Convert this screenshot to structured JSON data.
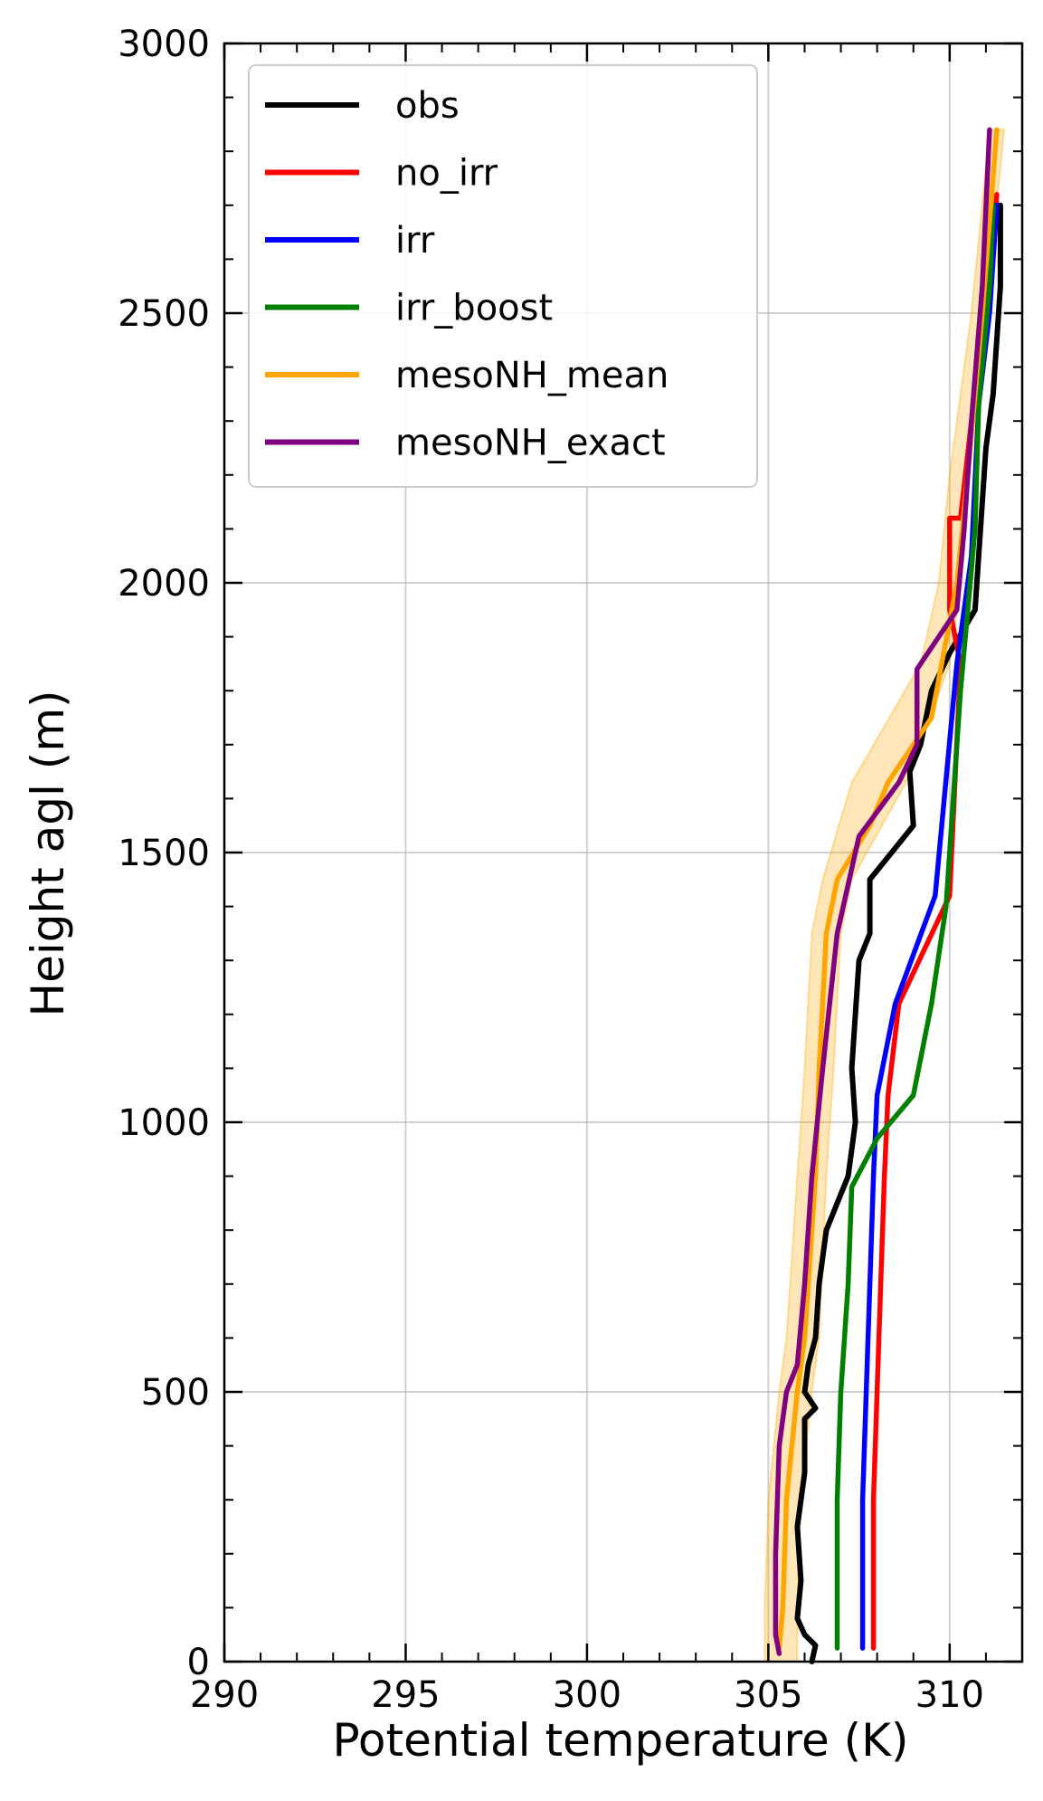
{
  "chart_data": {
    "type": "line",
    "title": "",
    "xlabel": "Potential temperature (K)",
    "ylabel": "Height agl (m)",
    "xlim": [
      290,
      312
    ],
    "ylim": [
      0,
      3000
    ],
    "xticks": [
      290,
      295,
      300,
      305,
      310
    ],
    "yticks": [
      0,
      500,
      1000,
      1500,
      2000,
      2500,
      3000
    ],
    "xtick_labels": [
      "290",
      "295",
      "300",
      "305",
      "310"
    ],
    "ytick_labels": [
      "0",
      "500",
      "1000",
      "1500",
      "2000",
      "2500",
      "3000"
    ],
    "grid": true,
    "legend_position": "top-left",
    "band": {
      "color": "#FFA500",
      "points": [
        {
          "y": 0,
          "lo": 304.9,
          "hi": 305.8
        },
        {
          "y": 100,
          "lo": 304.9,
          "hi": 305.8
        },
        {
          "y": 300,
          "lo": 305.0,
          "hi": 305.9
        },
        {
          "y": 500,
          "lo": 305.3,
          "hi": 306.2
        },
        {
          "y": 600,
          "lo": 305.5,
          "hi": 306.4
        },
        {
          "y": 900,
          "lo": 305.8,
          "hi": 306.6
        },
        {
          "y": 1100,
          "lo": 306.0,
          "hi": 306.8
        },
        {
          "y": 1350,
          "lo": 306.2,
          "hi": 307.0
        },
        {
          "y": 1450,
          "lo": 306.5,
          "hi": 307.3
        },
        {
          "y": 1630,
          "lo": 307.3,
          "hi": 308.8
        },
        {
          "y": 1850,
          "lo": 309.2,
          "hi": 310.0
        },
        {
          "y": 2000,
          "lo": 309.7,
          "hi": 310.3
        },
        {
          "y": 2200,
          "lo": 310.0,
          "hi": 310.5
        },
        {
          "y": 2500,
          "lo": 310.6,
          "hi": 311.0
        },
        {
          "y": 2840,
          "lo": 311.1,
          "hi": 311.5
        }
      ]
    },
    "series": [
      {
        "name": "obs",
        "color": "#000000",
        "points": [
          [
            306.2,
            0
          ],
          [
            306.3,
            30
          ],
          [
            306.0,
            50
          ],
          [
            305.8,
            80
          ],
          [
            305.9,
            150
          ],
          [
            305.8,
            250
          ],
          [
            306.0,
            350
          ],
          [
            306.0,
            450
          ],
          [
            306.3,
            470
          ],
          [
            306.0,
            500
          ],
          [
            306.1,
            550
          ],
          [
            306.3,
            600
          ],
          [
            306.4,
            700
          ],
          [
            306.6,
            800
          ],
          [
            306.9,
            850
          ],
          [
            307.2,
            900
          ],
          [
            307.3,
            950
          ],
          [
            307.4,
            1000
          ],
          [
            307.3,
            1100
          ],
          [
            307.4,
            1200
          ],
          [
            307.5,
            1300
          ],
          [
            307.8,
            1350
          ],
          [
            307.8,
            1450
          ],
          [
            308.4,
            1500
          ],
          [
            309.0,
            1550
          ],
          [
            308.9,
            1650
          ],
          [
            309.2,
            1700
          ],
          [
            309.5,
            1800
          ],
          [
            310.0,
            1870
          ],
          [
            310.7,
            1950
          ],
          [
            310.8,
            2050
          ],
          [
            310.9,
            2150
          ],
          [
            311.0,
            2250
          ],
          [
            311.2,
            2350
          ],
          [
            311.3,
            2450
          ],
          [
            311.4,
            2550
          ],
          [
            311.4,
            2700
          ]
        ]
      },
      {
        "name": "no_irr",
        "color": "#FF0000",
        "points": [
          [
            307.9,
            25
          ],
          [
            307.9,
            300
          ],
          [
            308.0,
            500
          ],
          [
            308.1,
            700
          ],
          [
            308.2,
            900
          ],
          [
            308.3,
            1050
          ],
          [
            308.6,
            1220
          ],
          [
            310.0,
            1420
          ],
          [
            310.3,
            1850
          ],
          [
            310.0,
            1950
          ],
          [
            310.0,
            2120
          ],
          [
            310.3,
            2120
          ],
          [
            310.6,
            2300
          ],
          [
            310.8,
            2430
          ],
          [
            311.2,
            2620
          ],
          [
            311.3,
            2720
          ]
        ]
      },
      {
        "name": "irr",
        "color": "#0000FF",
        "points": [
          [
            307.6,
            25
          ],
          [
            307.6,
            300
          ],
          [
            307.7,
            500
          ],
          [
            307.8,
            700
          ],
          [
            307.9,
            900
          ],
          [
            308.0,
            1050
          ],
          [
            308.5,
            1220
          ],
          [
            309.6,
            1420
          ],
          [
            310.2,
            1850
          ],
          [
            310.6,
            2050
          ],
          [
            310.8,
            2330
          ],
          [
            311.1,
            2500
          ],
          [
            311.3,
            2700
          ]
        ]
      },
      {
        "name": "irr_boost",
        "color": "#008000",
        "points": [
          [
            306.9,
            25
          ],
          [
            306.9,
            300
          ],
          [
            307.0,
            500
          ],
          [
            307.2,
            700
          ],
          [
            307.3,
            880
          ],
          [
            308.0,
            970
          ],
          [
            309.0,
            1050
          ],
          [
            309.5,
            1220
          ],
          [
            309.9,
            1400
          ],
          [
            310.3,
            1800
          ],
          [
            310.7,
            2100
          ],
          [
            310.8,
            2330
          ],
          [
            311.1,
            2550
          ],
          [
            311.2,
            2700
          ]
        ]
      },
      {
        "name": "mesoNH_mean",
        "color": "#FFA500",
        "points": [
          [
            305.3,
            25
          ],
          [
            305.4,
            100
          ],
          [
            305.5,
            300
          ],
          [
            305.8,
            500
          ],
          [
            306.0,
            600
          ],
          [
            306.3,
            900
          ],
          [
            306.4,
            1100
          ],
          [
            306.6,
            1350
          ],
          [
            306.9,
            1450
          ],
          [
            307.8,
            1550
          ],
          [
            308.3,
            1630
          ],
          [
            309.5,
            1750
          ],
          [
            310.2,
            2000
          ],
          [
            310.5,
            2200
          ],
          [
            310.9,
            2500
          ],
          [
            311.3,
            2840
          ]
        ]
      },
      {
        "name": "mesoNH_exact",
        "color": "#800080",
        "points": [
          [
            305.3,
            15
          ],
          [
            305.2,
            50
          ],
          [
            305.2,
            200
          ],
          [
            305.3,
            400
          ],
          [
            305.5,
            500
          ],
          [
            305.8,
            550
          ],
          [
            306.0,
            700
          ],
          [
            306.2,
            900
          ],
          [
            306.5,
            1100
          ],
          [
            306.9,
            1350
          ],
          [
            307.5,
            1530
          ],
          [
            308.6,
            1630
          ],
          [
            309.1,
            1700
          ],
          [
            309.1,
            1840
          ],
          [
            309.7,
            1900
          ],
          [
            310.2,
            1950
          ],
          [
            310.4,
            2100
          ],
          [
            310.6,
            2300
          ],
          [
            310.9,
            2550
          ],
          [
            311.1,
            2840
          ]
        ]
      }
    ]
  }
}
